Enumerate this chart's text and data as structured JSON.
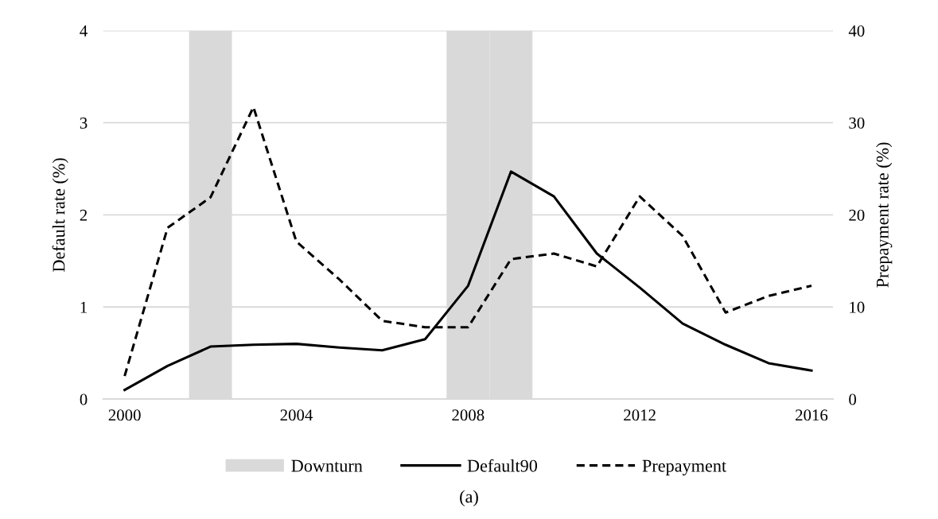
{
  "chart_data": {
    "type": "line",
    "categories": [
      "2000",
      null,
      null,
      null,
      "2004",
      null,
      null,
      null,
      "2008",
      null,
      null,
      null,
      "2012",
      null,
      null,
      null,
      "2016"
    ],
    "series": [
      {
        "name": "Downturn",
        "type": "bar",
        "color": "#d9d9d9",
        "values": [
          null,
          null,
          4,
          null,
          null,
          null,
          null,
          null,
          4,
          4,
          null,
          null,
          null,
          null,
          null,
          null,
          null
        ]
      },
      {
        "name": "Default90",
        "color": "#000000",
        "line_style": "solid",
        "values": [
          0.1,
          0.36,
          0.57,
          0.59,
          0.6,
          0.56,
          0.53,
          0.65,
          1.23,
          2.47,
          2.2,
          1.58,
          1.21,
          0.82,
          0.59,
          0.39,
          0.31
        ]
      },
      {
        "name": "Prepayment",
        "color": "#000000",
        "line_style": "dashed",
        "axis": "y2",
        "values": [
          2.5,
          18.6,
          21.9,
          31.7,
          17.1,
          13.0,
          8.5,
          7.8,
          7.8,
          15.2,
          15.8,
          14.4,
          22.0,
          17.7,
          9.4,
          11.2,
          12.3
        ]
      }
    ],
    "ylabel": "Default rate (%)",
    "y2label": "Prepayment rate (%)",
    "ylim": [
      0,
      4
    ],
    "yticks": [
      0,
      1,
      2,
      3,
      4
    ],
    "y2lim": [
      0,
      40
    ],
    "y2ticks": [
      0,
      10,
      20,
      30,
      40
    ],
    "grid": "y",
    "legend": "bottom",
    "annotations": [
      "(a)"
    ]
  }
}
